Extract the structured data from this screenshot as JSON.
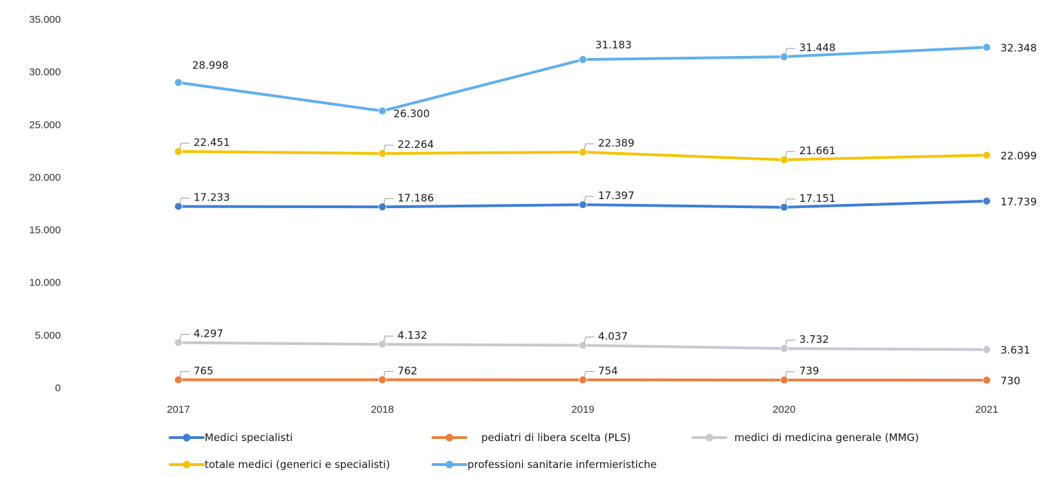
{
  "chart_data": {
    "type": "line",
    "categories": [
      "2017",
      "2018",
      "2019",
      "2020",
      "2021"
    ],
    "ylim": [
      0,
      35000
    ],
    "yticks": [
      0,
      5000,
      10000,
      15000,
      20000,
      25000,
      30000,
      35000
    ],
    "ytick_labels": [
      "0",
      "5.000",
      "10.000",
      "15.000",
      "20.000",
      "25.000",
      "30.000",
      "35.000"
    ],
    "grid": false,
    "legend_position": "bottom",
    "series": [
      {
        "name": "Medici specialisti",
        "color": "#3f7fd6",
        "values": [
          17233,
          17186,
          17397,
          17151,
          17739
        ],
        "labels": [
          "17.233",
          "17.186",
          "17.397",
          "17.151",
          "17.739"
        ]
      },
      {
        "name": "pediatri di libera scelta (PLS)",
        "color": "#ee7d3c",
        "values": [
          765,
          762,
          754,
          739,
          730
        ],
        "labels": [
          "765",
          "762",
          "754",
          "739",
          "730"
        ]
      },
      {
        "name": "medici di medicina generale (MMG)",
        "color": "#c8c8d0",
        "values": [
          4297,
          4132,
          4037,
          3732,
          3631
        ],
        "labels": [
          "4.297",
          "4.132",
          "4.037",
          "3.732",
          "3.631"
        ]
      },
      {
        "name": "totale medici (generici e specialisti)",
        "color": "#f5c400",
        "values": [
          22451,
          22264,
          22389,
          21661,
          22099
        ],
        "labels": [
          "22.451",
          "22.264",
          "22.389",
          "21.661",
          "22.099"
        ]
      },
      {
        "name": "professioni sanitarie infermieristiche",
        "color": "#5fb0ec",
        "values": [
          28998,
          26300,
          31183,
          31448,
          32348
        ],
        "labels": [
          "28.998",
          "26.300",
          "31.183",
          "31.448",
          "32.348"
        ]
      }
    ]
  }
}
